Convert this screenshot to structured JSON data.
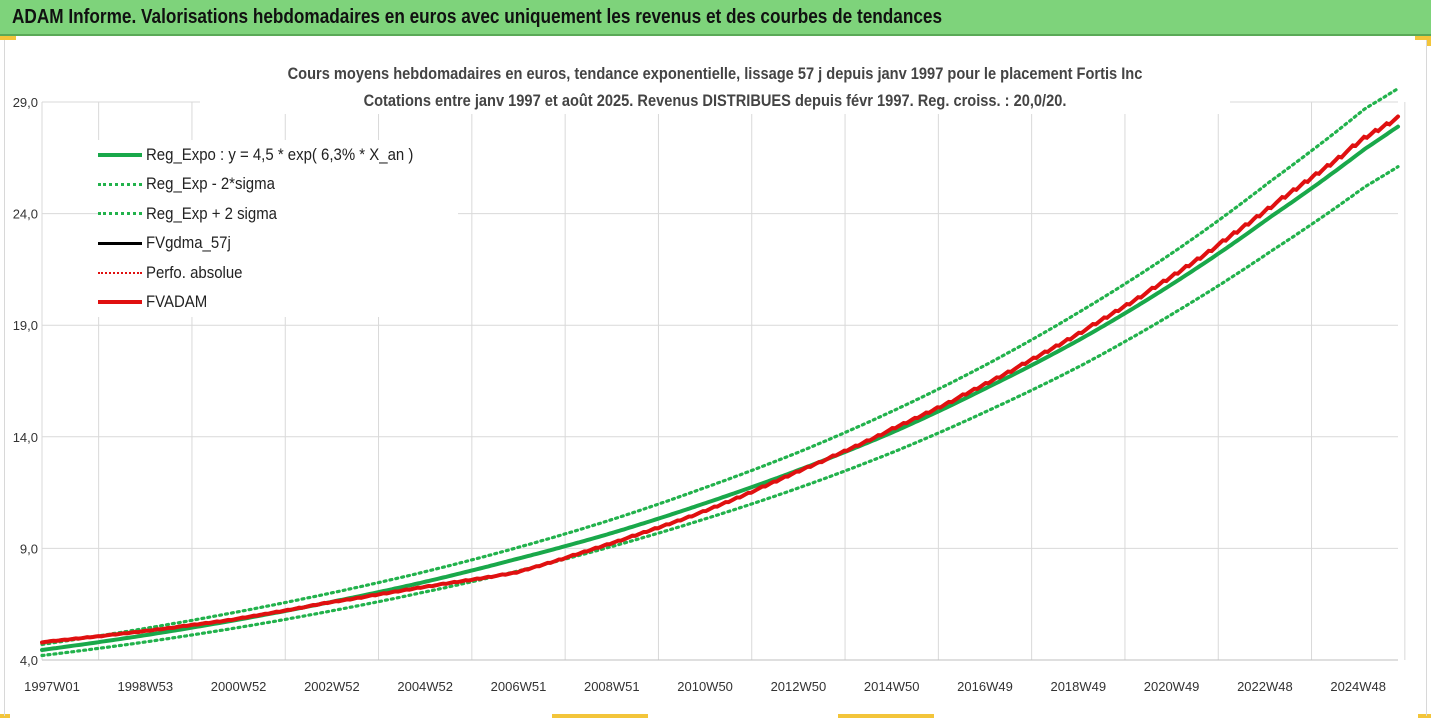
{
  "header": {
    "title": "ADAM Informe. Valorisations hebdomadaires en euros avec uniquement les revenus et des courbes de tendances"
  },
  "colors": {
    "banner": "#7ed37b",
    "green": "#19a84a",
    "green_dotted": "#22b24c",
    "red": "#e01010",
    "black": "#000000",
    "grid": "#d9d9d9"
  },
  "chart_data": {
    "type": "line",
    "title": "Cours moyens hebdomadaires en euros, tendance exponentielle, lissage 57 j depuis janv 1997 pour le placement Fortis Inc",
    "subtitle": "Cotations entre janv 1997 et août 2025. Revenus DISTRIBUES depuis févr 1997. Reg. croiss. : 20,0/20.",
    "xlabel": "",
    "ylabel": "",
    "x_tick_labels": [
      "1997W01",
      "1998W53",
      "2000W52",
      "2002W52",
      "2004W52",
      "2006W51",
      "2008W51",
      "2010W50",
      "2012W50",
      "2014W50",
      "2016W49",
      "2018W49",
      "2020W49",
      "2022W48",
      "2024W48"
    ],
    "y_tick_labels": [
      "4,0",
      "9,0",
      "14,0",
      "19,0",
      "24,0",
      "29,0"
    ],
    "ylim": [
      4.0,
      29.0
    ],
    "xlim": [
      1997.0,
      2025.7
    ],
    "legend_position": "top-left",
    "grid": true,
    "series": [
      {
        "name": "Reg_Expo : y = 4,5 * exp( 6,3% *  X_an )",
        "style": "solid-green",
        "x": [
          1997.0,
          1999.0,
          2001.0,
          2003.0,
          2005.0,
          2007.0,
          2009.0,
          2011.0,
          2013.0,
          2015.0,
          2017.0,
          2019.0,
          2021.0,
          2023.0,
          2025.0,
          2025.7
        ],
        "y": [
          4.45,
          5.05,
          5.75,
          6.55,
          7.45,
          8.5,
          9.65,
          11.0,
          12.5,
          14.2,
          16.2,
          18.4,
          20.95,
          23.85,
          26.9,
          27.9
        ]
      },
      {
        "name": "Reg_Exp - 2*sigma",
        "style": "dotted-green",
        "x": [
          1997.0,
          1999.0,
          2001.0,
          2003.0,
          2005.0,
          2007.0,
          2009.0,
          2011.0,
          2013.0,
          2015.0,
          2017.0,
          2019.0,
          2021.0,
          2023.0,
          2025.0,
          2025.7
        ],
        "y": [
          4.2,
          4.75,
          5.4,
          6.15,
          7.0,
          7.95,
          9.05,
          10.3,
          11.7,
          13.3,
          15.15,
          17.2,
          19.6,
          22.3,
          25.2,
          26.1
        ]
      },
      {
        "name": "Reg_Exp + 2 sigma",
        "style": "dotted-green",
        "x": [
          1997.0,
          1999.0,
          2001.0,
          2003.0,
          2005.0,
          2007.0,
          2009.0,
          2011.0,
          2013.0,
          2015.0,
          2017.0,
          2019.0,
          2021.0,
          2023.0,
          2025.0,
          2025.7
        ],
        "y": [
          4.7,
          5.35,
          6.1,
          6.95,
          7.9,
          9.0,
          10.25,
          11.7,
          13.3,
          15.15,
          17.25,
          19.65,
          22.35,
          25.45,
          28.7,
          29.6
        ]
      },
      {
        "name": "FVgdma_57j",
        "style": "solid-black",
        "x": [],
        "y": []
      },
      {
        "name": "Perfo. absolue",
        "style": "dotted-red",
        "x": [],
        "y": []
      },
      {
        "name": "FVADAM",
        "style": "solid-red",
        "x": [
          1997.0,
          1999.0,
          2001.0,
          2003.0,
          2005.0,
          2007.0,
          2009.0,
          2011.0,
          2013.0,
          2015.0,
          2017.0,
          2019.0,
          2021.0,
          2023.0,
          2025.0,
          2025.7
        ],
        "y": [
          4.8,
          5.25,
          5.8,
          6.55,
          7.25,
          7.9,
          9.2,
          10.65,
          12.45,
          14.35,
          16.4,
          18.7,
          21.3,
          24.3,
          27.4,
          28.3
        ]
      }
    ]
  }
}
